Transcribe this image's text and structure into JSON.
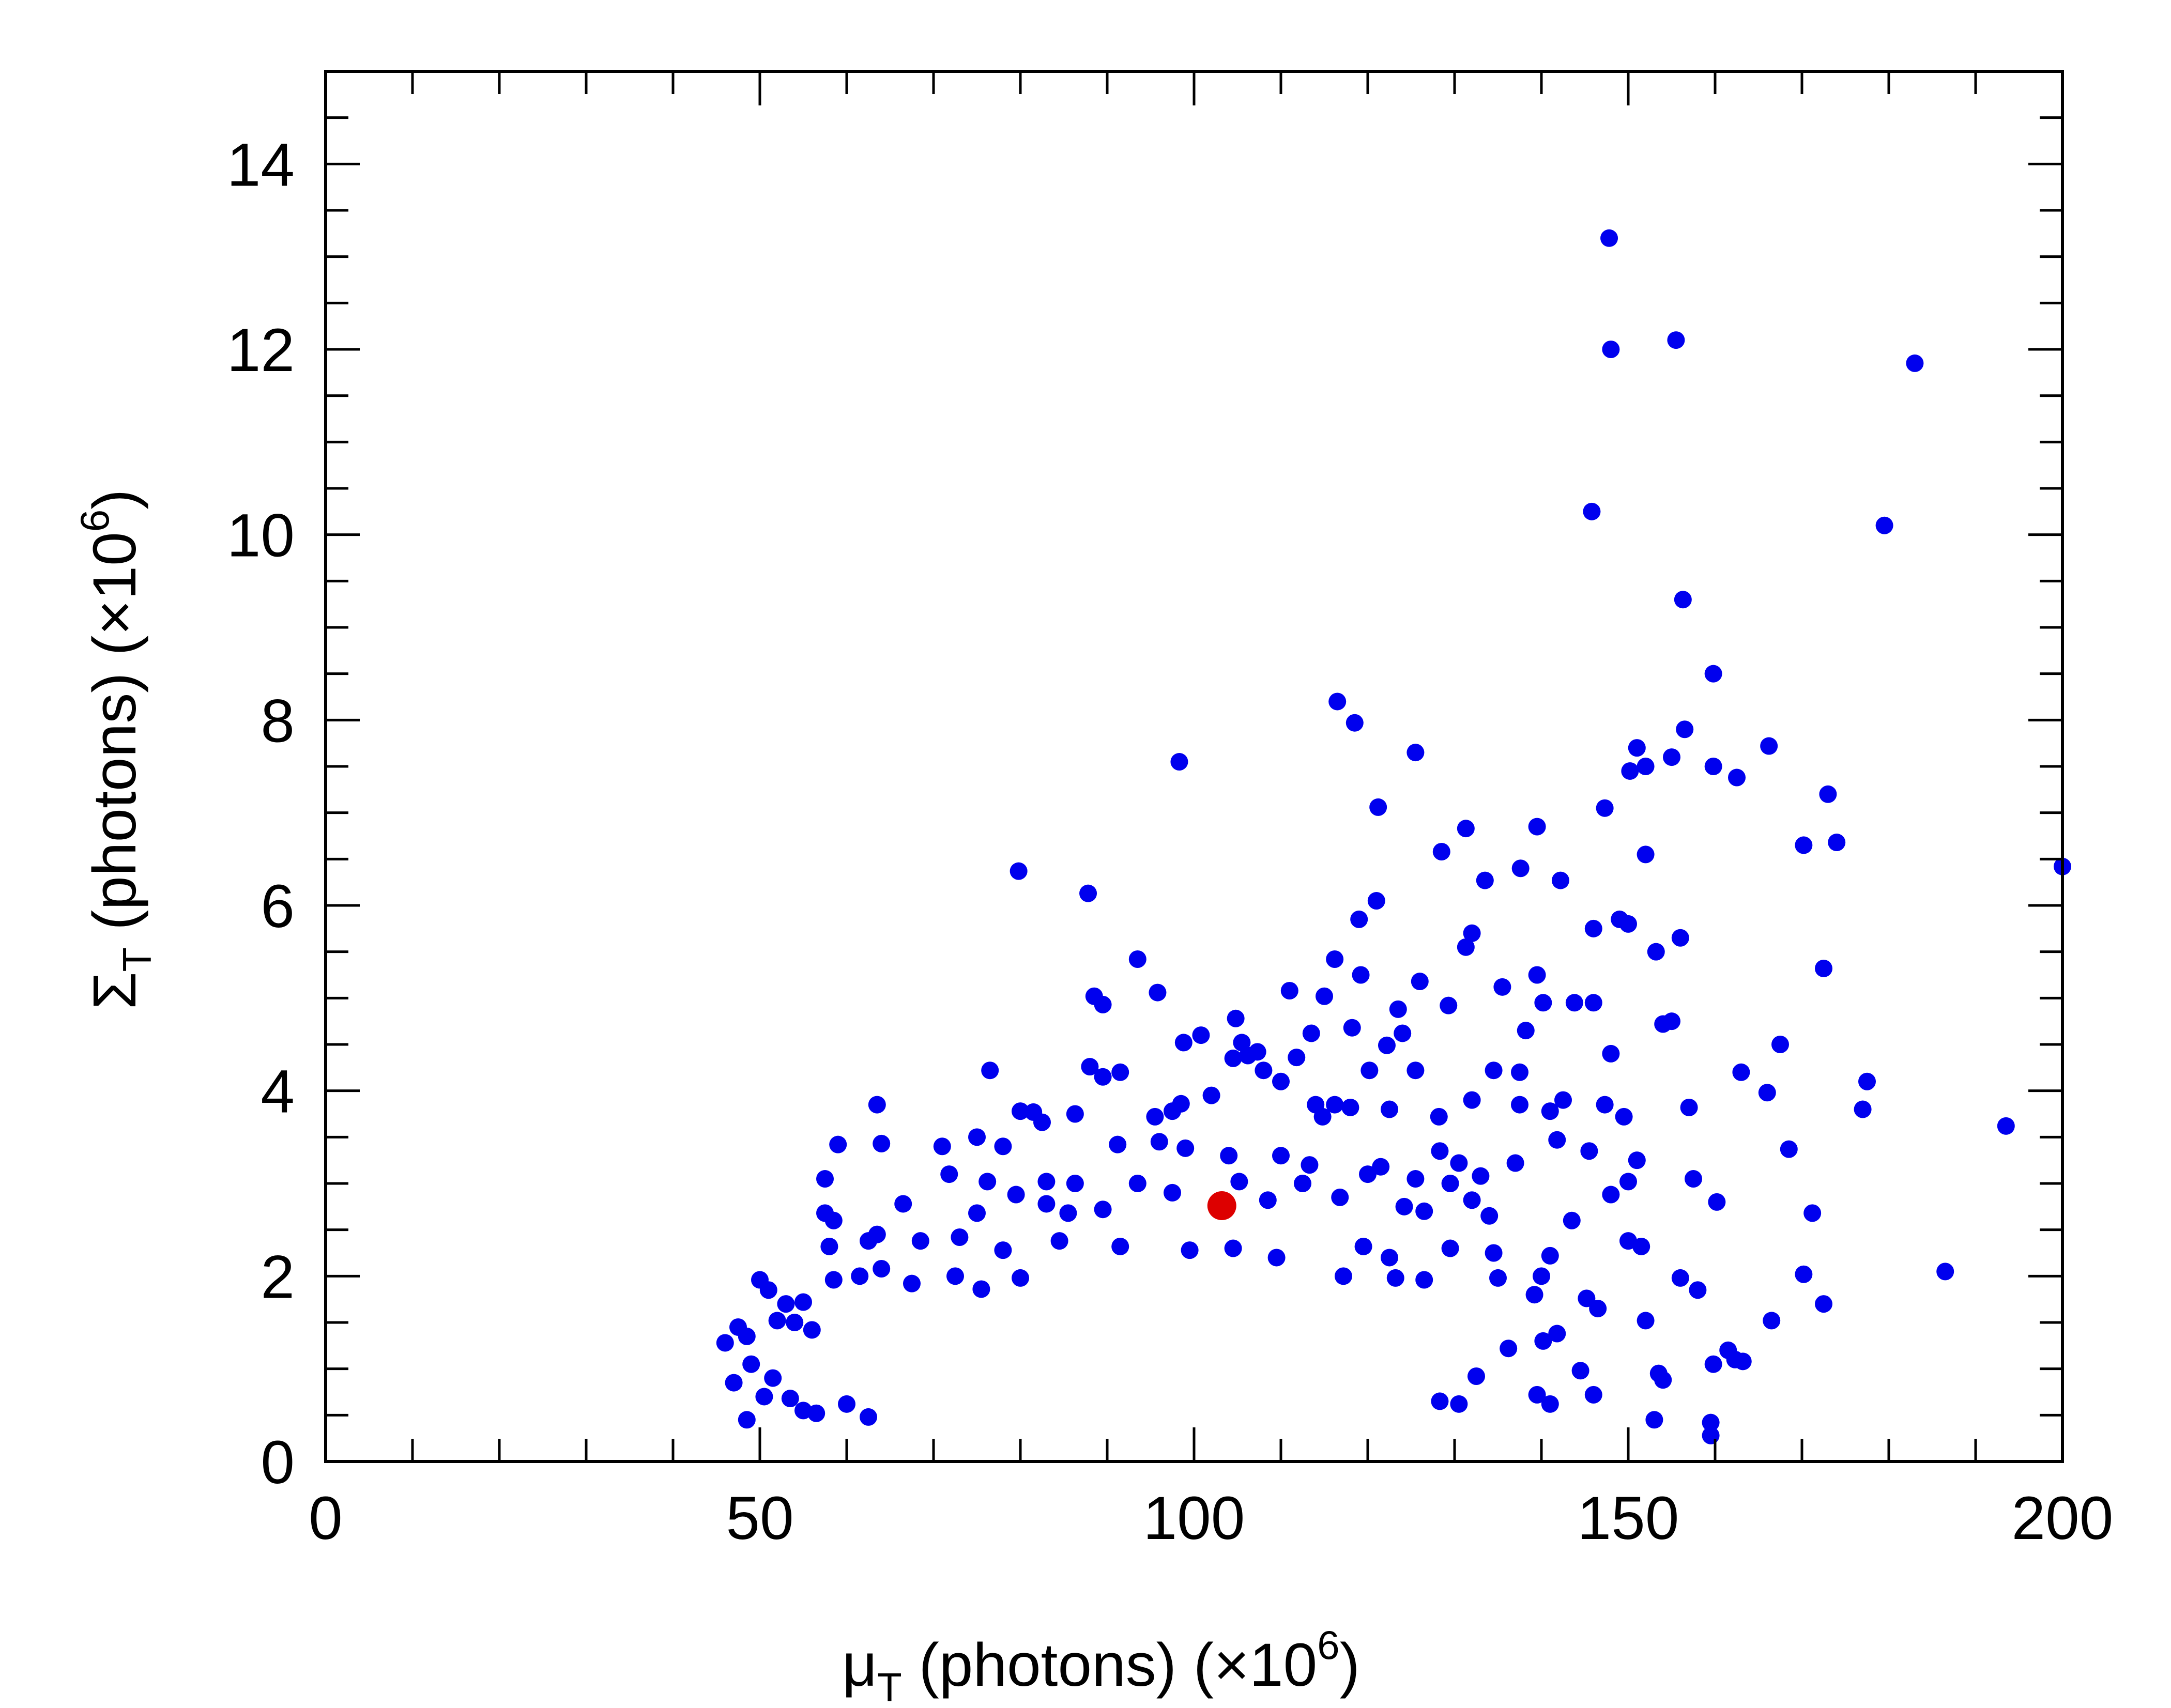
{
  "chart_data": {
    "type": "scatter",
    "xlabel": {
      "main": "μ",
      "sub": "T",
      "rest": " (photons) (×10",
      "sup": "6",
      "end": ")"
    },
    "ylabel": {
      "main": "Σ",
      "sub": "T",
      "rest": " (photons) (×10",
      "sup": "6",
      "end": ")"
    },
    "xlim": [
      0,
      200
    ],
    "ylim": [
      0,
      15
    ],
    "x_ticks": [
      0,
      50,
      100,
      150,
      200
    ],
    "y_ticks": [
      0,
      2,
      4,
      6,
      8,
      10,
      12,
      14
    ],
    "x_tick_labels": [
      "0",
      "50",
      "100",
      "150",
      "200"
    ],
    "y_tick_labels": [
      "0",
      "2",
      "4",
      "6",
      "8",
      "10",
      "12",
      "14"
    ],
    "x_minor_step": 10,
    "y_minor_step": 0.5,
    "grid": false,
    "colors": {
      "series": "#0000ee",
      "highlight": "#dd0000",
      "axis": "#000000"
    },
    "series": [
      {
        "color": "#0000ee",
        "points": [
          [
            147.8,
            13.2
          ],
          [
            148,
            12
          ],
          [
            155.5,
            12.1
          ],
          [
            183,
            11.85
          ],
          [
            179.5,
            10.1
          ],
          [
            145.8,
            10.25
          ],
          [
            156.3,
            9.3
          ],
          [
            159.8,
            8.5
          ],
          [
            116.5,
            8.2
          ],
          [
            118.5,
            7.97
          ],
          [
            156.5,
            7.9
          ],
          [
            125.5,
            7.65
          ],
          [
            98.3,
            7.55
          ],
          [
            151,
            7.7
          ],
          [
            150.2,
            7.45
          ],
          [
            152,
            7.5
          ],
          [
            155,
            7.6
          ],
          [
            159.8,
            7.5
          ],
          [
            162.5,
            7.38
          ],
          [
            166.2,
            7.72
          ],
          [
            173,
            7.2
          ],
          [
            147.3,
            7.05
          ],
          [
            121.2,
            7.06
          ],
          [
            131.3,
            6.83
          ],
          [
            139.5,
            6.85
          ],
          [
            170.2,
            6.65
          ],
          [
            174,
            6.68
          ],
          [
            128.5,
            6.58
          ],
          [
            152,
            6.55
          ],
          [
            137.6,
            6.4
          ],
          [
            79.8,
            6.37
          ],
          [
            87.8,
            6.13
          ],
          [
            133.5,
            6.27
          ],
          [
            142.2,
            6.27
          ],
          [
            200,
            6.42
          ],
          [
            121,
            6.05
          ],
          [
            146,
            5.75
          ],
          [
            149,
            5.85
          ],
          [
            150,
            5.8
          ],
          [
            156,
            5.65
          ],
          [
            119,
            5.85
          ],
          [
            132,
            5.7
          ],
          [
            131.3,
            5.55
          ],
          [
            153.2,
            5.5
          ],
          [
            172.5,
            5.32
          ],
          [
            93.5,
            5.42
          ],
          [
            116.2,
            5.42
          ],
          [
            119.2,
            5.25
          ],
          [
            126,
            5.18
          ],
          [
            135.5,
            5.12
          ],
          [
            139.5,
            5.25
          ],
          [
            143.8,
            4.95
          ],
          [
            146,
            4.95
          ],
          [
            95.8,
            5.06
          ],
          [
            88.5,
            5.02
          ],
          [
            89.5,
            4.93
          ],
          [
            111,
            5.08
          ],
          [
            115,
            5.02
          ],
          [
            123.5,
            4.88
          ],
          [
            140.2,
            4.95
          ],
          [
            100.8,
            4.6
          ],
          [
            98.8,
            4.52
          ],
          [
            104.8,
            4.78
          ],
          [
            105.5,
            4.52
          ],
          [
            106.2,
            4.38
          ],
          [
            107.3,
            4.42
          ],
          [
            113.5,
            4.62
          ],
          [
            118.2,
            4.68
          ],
          [
            122.2,
            4.49
          ],
          [
            124,
            4.62
          ],
          [
            129.3,
            4.92
          ],
          [
            154,
            4.72
          ],
          [
            155,
            4.75
          ],
          [
            148,
            4.4
          ],
          [
            167.5,
            4.5
          ],
          [
            138.2,
            4.65
          ],
          [
            76.5,
            4.22
          ],
          [
            88,
            4.26
          ],
          [
            89.5,
            4.15
          ],
          [
            91.5,
            4.2
          ],
          [
            104.5,
            4.35
          ],
          [
            108,
            4.22
          ],
          [
            110,
            4.1
          ],
          [
            120.2,
            4.22
          ],
          [
            125.5,
            4.22
          ],
          [
            134.5,
            4.22
          ],
          [
            137.5,
            4.2
          ],
          [
            163,
            4.2
          ],
          [
            177.5,
            4.1
          ],
          [
            111.8,
            4.36
          ],
          [
            80,
            3.78
          ],
          [
            81.5,
            3.77
          ],
          [
            82.5,
            3.66
          ],
          [
            86.3,
            3.75
          ],
          [
            95.5,
            3.72
          ],
          [
            97.5,
            3.78
          ],
          [
            98.5,
            3.86
          ],
          [
            102,
            3.95
          ],
          [
            114,
            3.85
          ],
          [
            114.8,
            3.72
          ],
          [
            116.2,
            3.85
          ],
          [
            118,
            3.82
          ],
          [
            122.5,
            3.8
          ],
          [
            128.2,
            3.72
          ],
          [
            132,
            3.9
          ],
          [
            137.5,
            3.85
          ],
          [
            141,
            3.78
          ],
          [
            142.5,
            3.9
          ],
          [
            147.3,
            3.85
          ],
          [
            149.5,
            3.72
          ],
          [
            157,
            3.82
          ],
          [
            166,
            3.98
          ],
          [
            177,
            3.8
          ],
          [
            193.5,
            3.62
          ],
          [
            63.5,
            3.85
          ],
          [
            59,
            3.42
          ],
          [
            64,
            3.43
          ],
          [
            71,
            3.4
          ],
          [
            75,
            3.5
          ],
          [
            78,
            3.4
          ],
          [
            91.2,
            3.42
          ],
          [
            96,
            3.45
          ],
          [
            99,
            3.38
          ],
          [
            104,
            3.3
          ],
          [
            110,
            3.3
          ],
          [
            113.3,
            3.2
          ],
          [
            128.3,
            3.35
          ],
          [
            130.5,
            3.22
          ],
          [
            137,
            3.22
          ],
          [
            141.8,
            3.47
          ],
          [
            145.5,
            3.35
          ],
          [
            151,
            3.25
          ],
          [
            168.5,
            3.37
          ],
          [
            57.5,
            3.05
          ],
          [
            71.8,
            3.1
          ],
          [
            76.2,
            3.02
          ],
          [
            83,
            3.02
          ],
          [
            86.3,
            3.0
          ],
          [
            93.5,
            3.0
          ],
          [
            105.2,
            3.02
          ],
          [
            112.5,
            3.0
          ],
          [
            120,
            3.1
          ],
          [
            121.5,
            3.18
          ],
          [
            125.5,
            3.05
          ],
          [
            129.5,
            3.0
          ],
          [
            133,
            3.08
          ],
          [
            150,
            3.02
          ],
          [
            157.5,
            3.05
          ],
          [
            57.5,
            2.68
          ],
          [
            58.5,
            2.6
          ],
          [
            66.5,
            2.78
          ],
          [
            75,
            2.68
          ],
          [
            79.5,
            2.88
          ],
          [
            83,
            2.78
          ],
          [
            85.5,
            2.68
          ],
          [
            89.5,
            2.72
          ],
          [
            97.5,
            2.9
          ],
          [
            108.5,
            2.82
          ],
          [
            116.8,
            2.85
          ],
          [
            124.2,
            2.75
          ],
          [
            126.5,
            2.7
          ],
          [
            132,
            2.82
          ],
          [
            134,
            2.65
          ],
          [
            143.5,
            2.6
          ],
          [
            148,
            2.88
          ],
          [
            160.2,
            2.8
          ],
          [
            171.2,
            2.68
          ],
          [
            58,
            2.32
          ],
          [
            62.5,
            2.38
          ],
          [
            63.5,
            2.45
          ],
          [
            68.5,
            2.38
          ],
          [
            73,
            2.42
          ],
          [
            78,
            2.28
          ],
          [
            84.5,
            2.38
          ],
          [
            91.5,
            2.32
          ],
          [
            99.5,
            2.28
          ],
          [
            104.5,
            2.3
          ],
          [
            109.5,
            2.2
          ],
          [
            119.5,
            2.32
          ],
          [
            122.5,
            2.2
          ],
          [
            129.5,
            2.3
          ],
          [
            134.5,
            2.25
          ],
          [
            141,
            2.22
          ],
          [
            150,
            2.38
          ],
          [
            151.5,
            2.32
          ],
          [
            58.5,
            1.96
          ],
          [
            61.5,
            2.0
          ],
          [
            64,
            2.08
          ],
          [
            67.5,
            1.92
          ],
          [
            72.5,
            2.0
          ],
          [
            75.5,
            1.86
          ],
          [
            80,
            1.98
          ],
          [
            117.2,
            2.0
          ],
          [
            123.2,
            1.98
          ],
          [
            126.5,
            1.96
          ],
          [
            135,
            1.98
          ],
          [
            140,
            2.0
          ],
          [
            156,
            1.98
          ],
          [
            158,
            1.85
          ],
          [
            170.2,
            2.02
          ],
          [
            186.5,
            2.05
          ],
          [
            139.2,
            1.8
          ],
          [
            145.2,
            1.76
          ],
          [
            146.5,
            1.65
          ],
          [
            166.5,
            1.52
          ],
          [
            172.5,
            1.7
          ],
          [
            50,
            1.96
          ],
          [
            51,
            1.85
          ],
          [
            53,
            1.7
          ],
          [
            55,
            1.72
          ],
          [
            47.5,
            1.45
          ],
          [
            46,
            1.28
          ],
          [
            48.5,
            1.35
          ],
          [
            52,
            1.52
          ],
          [
            54,
            1.5
          ],
          [
            56,
            1.42
          ],
          [
            49,
            1.05
          ],
          [
            51.5,
            0.9
          ],
          [
            47,
            0.85
          ],
          [
            48.5,
            0.45
          ],
          [
            50.5,
            0.7
          ],
          [
            53.5,
            0.68
          ],
          [
            55,
            0.55
          ],
          [
            56.5,
            0.52
          ],
          [
            60,
            0.62
          ],
          [
            62.5,
            0.48
          ],
          [
            140.2,
            1.3
          ],
          [
            141.8,
            1.38
          ],
          [
            144.5,
            0.98
          ],
          [
            146,
            0.72
          ],
          [
            152,
            1.52
          ],
          [
            153.5,
            0.95
          ],
          [
            153,
            0.45
          ],
          [
            154,
            0.88
          ],
          [
            159.8,
            1.05
          ],
          [
            159.5,
            0.42
          ],
          [
            159.5,
            0.28
          ],
          [
            161.5,
            1.2
          ],
          [
            162.3,
            1.1
          ],
          [
            163.2,
            1.08
          ],
          [
            139.5,
            0.72
          ],
          [
            141,
            0.62
          ],
          [
            136.2,
            1.22
          ],
          [
            132.5,
            0.92
          ],
          [
            130.5,
            0.62
          ],
          [
            128.3,
            0.65
          ]
        ]
      },
      {
        "color": "#dd0000",
        "highlight": true,
        "points": [
          [
            103.2,
            2.76
          ]
        ]
      }
    ]
  }
}
